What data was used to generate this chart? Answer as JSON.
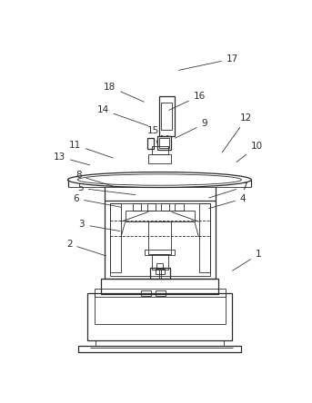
{
  "bg_color": "#ffffff",
  "line_color": "#2a2a2a",
  "fig_width": 3.43,
  "fig_height": 4.44,
  "dpi": 100,
  "labels_data": [
    [
      17,
      195,
      32,
      275,
      15
    ],
    [
      18,
      152,
      78,
      100,
      55
    ],
    [
      14,
      158,
      112,
      90,
      88
    ],
    [
      16,
      181,
      90,
      228,
      68
    ],
    [
      9,
      190,
      130,
      235,
      108
    ],
    [
      15,
      170,
      142,
      162,
      118
    ],
    [
      12,
      258,
      152,
      295,
      100
    ],
    [
      10,
      278,
      165,
      310,
      140
    ],
    [
      11,
      108,
      158,
      50,
      138
    ],
    [
      13,
      75,
      168,
      28,
      155
    ],
    [
      8,
      107,
      198,
      55,
      182
    ],
    [
      5,
      140,
      210,
      58,
      200
    ],
    [
      6,
      120,
      228,
      52,
      215
    ],
    [
      7,
      238,
      215,
      292,
      198
    ],
    [
      4,
      238,
      230,
      290,
      215
    ],
    [
      3,
      118,
      262,
      60,
      252
    ],
    [
      2,
      98,
      298,
      42,
      280
    ],
    [
      1,
      272,
      320,
      312,
      295
    ]
  ]
}
